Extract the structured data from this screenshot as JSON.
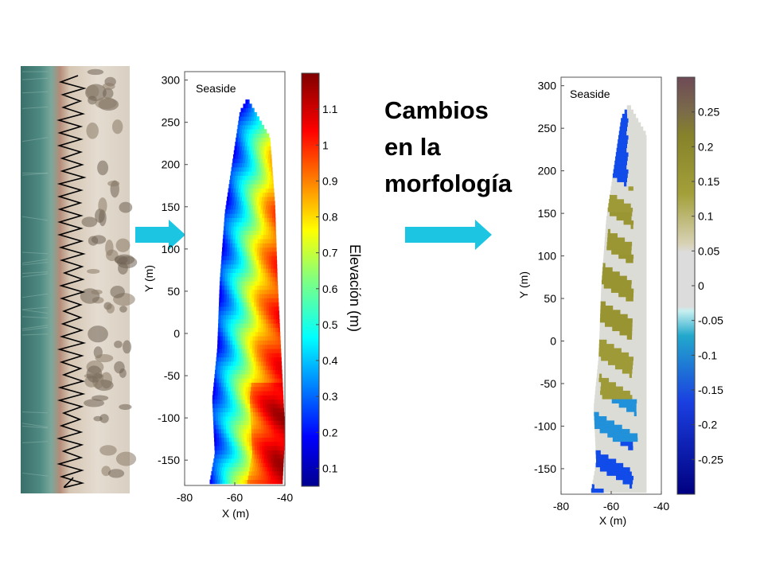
{
  "slide": {
    "title_lines": [
      "Cambios",
      "en la",
      "morfología"
    ],
    "accent_arrow_color": "#1cc6e3"
  },
  "photo": {
    "description_icon": "aerial-beach-photo-with-gps-track"
  },
  "chart_data": [
    {
      "type": "heatmap",
      "panel_label": "Seaside",
      "xlabel": "X (m)",
      "ylabel": "Y (m)",
      "xlim": [
        -80,
        -40
      ],
      "ylim": [
        -180,
        310
      ],
      "x_ticks": [
        -80,
        -60,
        -40
      ],
      "y_ticks": [
        300,
        250,
        200,
        150,
        100,
        50,
        0,
        -50,
        -100,
        -150
      ],
      "colorbar": {
        "label": "Elevación (m)",
        "range": [
          0.05,
          1.2
        ],
        "ticks": [
          1.1,
          1,
          0.9,
          0.8,
          0.7,
          0.6,
          0.5,
          0.4,
          0.3,
          0.2,
          0.1
        ],
        "colormap": "jet"
      },
      "domain_outline": [
        [
          -70,
          -178
        ],
        [
          -68,
          -145
        ],
        [
          -69,
          -80
        ],
        [
          -67,
          -20
        ],
        [
          -66,
          60
        ],
        [
          -64,
          140
        ],
        [
          -61,
          200
        ],
        [
          -58,
          260
        ],
        [
          -55,
          276
        ],
        [
          -48,
          277
        ],
        [
          -46,
          230
        ],
        [
          -44,
          150
        ],
        [
          -43,
          60
        ],
        [
          -42,
          0
        ],
        [
          -41,
          -60
        ],
        [
          -40,
          -120
        ],
        [
          -41,
          -178
        ]
      ],
      "elevation_profile": {
        "x_offset_from_west_edge_m": [
          0,
          4,
          8,
          12,
          16,
          20,
          24,
          30
        ],
        "elevation_m": [
          0.25,
          0.4,
          0.55,
          0.7,
          0.85,
          0.95,
          1.02,
          1.05
        ]
      }
    },
    {
      "type": "heatmap",
      "panel_label": "Seaside",
      "xlabel": "X (m)",
      "ylabel": "Y (m)",
      "xlim": [
        -80,
        -40
      ],
      "ylim": [
        -180,
        310
      ],
      "x_ticks": [
        -80,
        -60,
        -40
      ],
      "y_ticks": [
        300,
        250,
        200,
        150,
        100,
        50,
        0,
        -50,
        -100,
        -150
      ],
      "colorbar": {
        "label": "",
        "range": [
          -0.3,
          0.3
        ],
        "ticks": [
          0.25,
          0.2,
          0.15,
          0.1,
          0.05,
          0,
          -0.05,
          -0.1,
          -0.15,
          -0.2,
          -0.25
        ],
        "colormap": "diverging-olive-gray-blue"
      },
      "change_regions": [
        {
          "y": [
            180,
            280
          ],
          "x": [
            -70,
            -54
          ],
          "change_m": -0.2
        },
        {
          "y": [
            150,
            180
          ],
          "x": [
            -64,
            -52
          ],
          "change_m": 0.12
        },
        {
          "y": [
            100,
            150
          ],
          "x": [
            -62,
            -52
          ],
          "change_m": 0.14
        },
        {
          "y": [
            0,
            100
          ],
          "x": [
            -65,
            -52
          ],
          "change_m": 0.15
        },
        {
          "y": [
            -70,
            0
          ],
          "x": [
            -65,
            -52
          ],
          "change_m": 0.12
        },
        {
          "y": [
            -120,
            -70
          ],
          "x": [
            -68,
            -50
          ],
          "change_m": -0.1
        },
        {
          "y": [
            -180,
            -120
          ],
          "x": [
            -68,
            -52
          ],
          "change_m": -0.2
        }
      ]
    }
  ]
}
